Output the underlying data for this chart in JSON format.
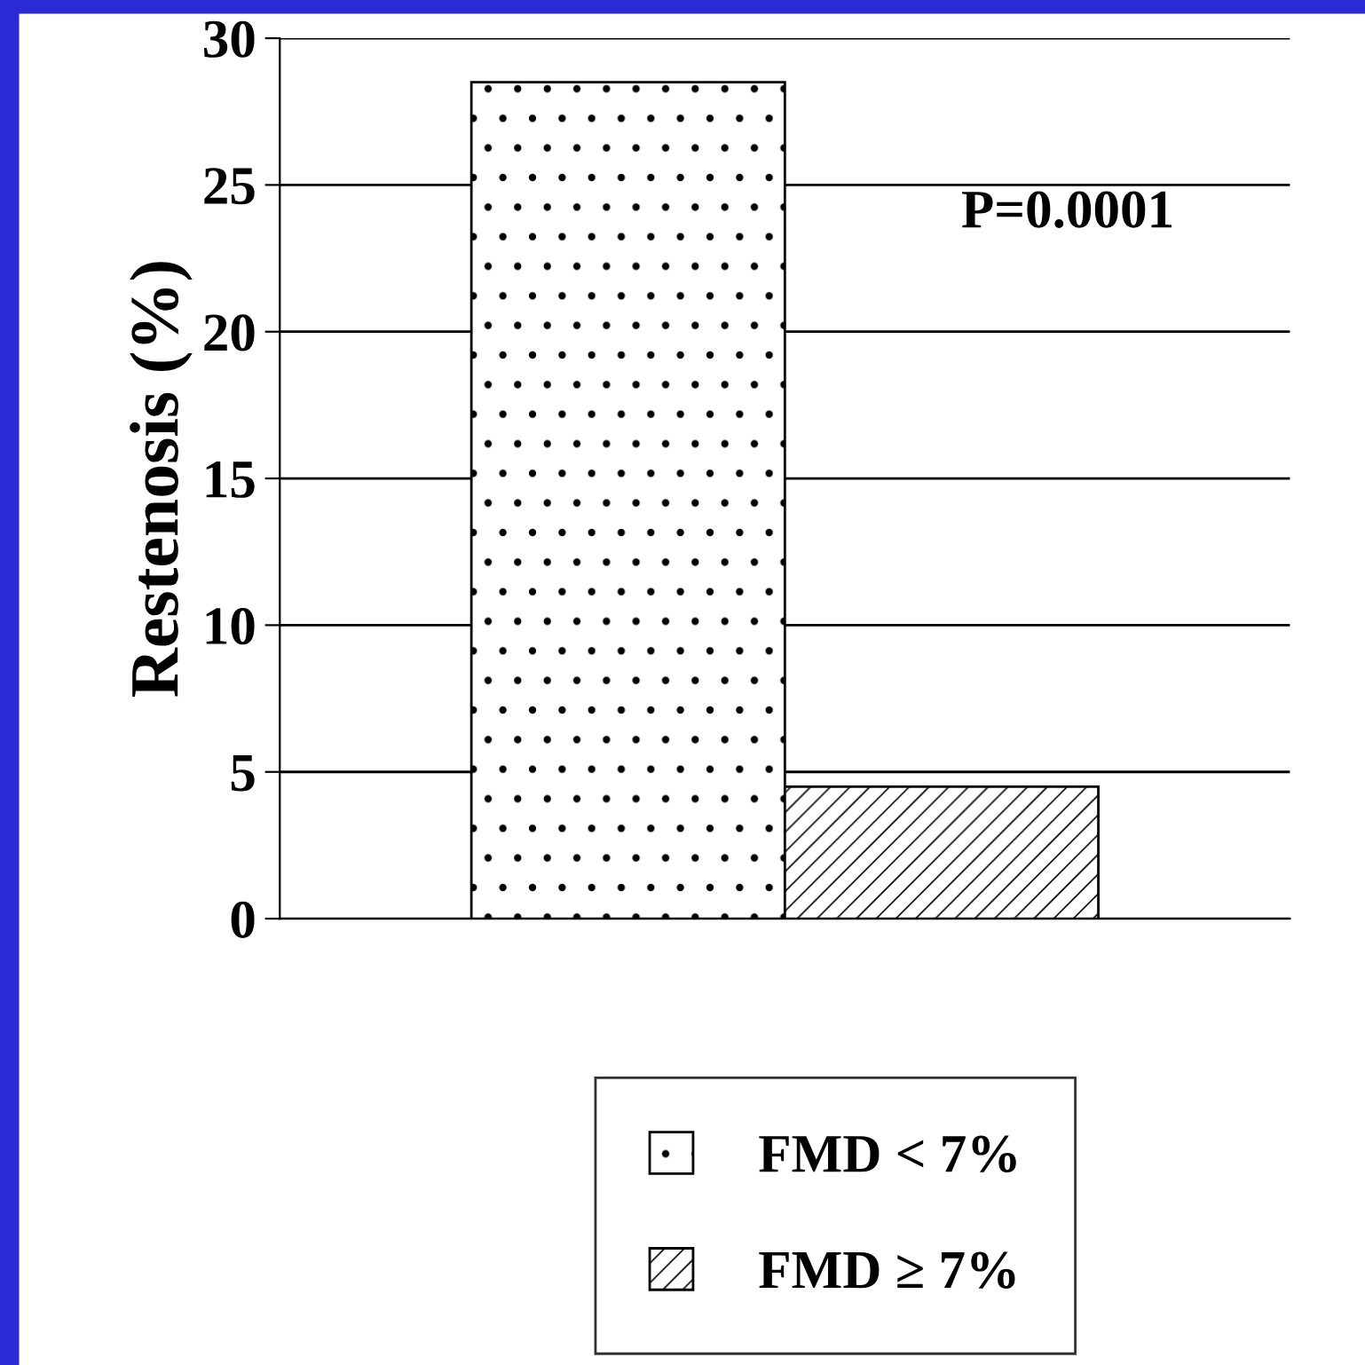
{
  "chart_data": {
    "type": "bar",
    "ylabel": "Restenosis (%)",
    "categories": [
      null
    ],
    "series": [
      {
        "name": "FMD < 7%",
        "color": "#ffffff",
        "values": [
          28.5
        ]
      },
      {
        "name": "FMD ≥ 7%",
        "color": "#ffffff",
        "values": [
          4.5
        ]
      }
    ],
    "ylim": [
      0,
      30
    ],
    "yticks": [
      0,
      5,
      10,
      15,
      20,
      25,
      30
    ],
    "grid": "y",
    "legend": "bottom",
    "annotations": [
      "P=0.0001"
    ]
  }
}
